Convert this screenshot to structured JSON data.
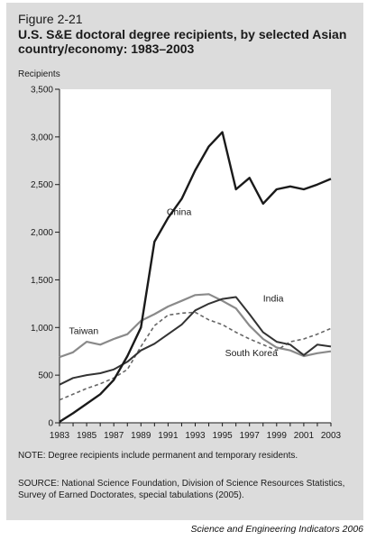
{
  "figure": {
    "label": "Figure 2-21",
    "title": "U.S. S&E doctoral degree recipients, by selected Asian country/economy: 1983–2003",
    "note": "NOTE: Degree recipients include permanent and temporary residents.",
    "source": "SOURCE: National Science Foundation, Division of Science Resources Statistics, Survey of Earned Doctorates, special tabulations (2005).",
    "credit": "Science and Engineering Indicators 2006"
  },
  "colors": {
    "panel": "#dcdcdc",
    "china": "#1a1a1a",
    "india": "#333333",
    "taiwan": "#8a8a8a",
    "south_korea": "#666666"
  },
  "chart_data": {
    "type": "line",
    "title": "",
    "ylabel": "Recipients",
    "xlabel": "",
    "x": [
      1983,
      1984,
      1985,
      1986,
      1987,
      1988,
      1989,
      1990,
      1991,
      1992,
      1993,
      1994,
      1995,
      1996,
      1997,
      1998,
      1999,
      2000,
      2001,
      2002,
      2003
    ],
    "xticks": [
      "1983",
      "1985",
      "1987",
      "1989",
      "1991",
      "1993",
      "1995",
      "1997",
      "1999",
      "2001",
      "2003"
    ],
    "yticks": [
      "0",
      "500",
      "1,000",
      "1,500",
      "2,000",
      "2,500",
      "3,000",
      "3,500"
    ],
    "ylim": [
      0,
      3500
    ],
    "grid": false,
    "series": [
      {
        "name": "China",
        "style": "solid",
        "width": 2.4,
        "values": [
          10,
          100,
          200,
          300,
          450,
          700,
          1000,
          1900,
          2150,
          2350,
          2650,
          2900,
          3050,
          2450,
          2570,
          2300,
          2450,
          2480,
          2450,
          2500,
          2560
        ]
      },
      {
        "name": "India",
        "style": "solid",
        "width": 2.0,
        "values": [
          400,
          470,
          500,
          520,
          560,
          640,
          760,
          830,
          930,
          1030,
          1180,
          1250,
          1300,
          1320,
          1140,
          950,
          850,
          820,
          710,
          820,
          800
        ]
      },
      {
        "name": "Taiwan",
        "style": "solid",
        "width": 2.2,
        "values": [
          690,
          740,
          850,
          820,
          880,
          930,
          1070,
          1140,
          1220,
          1280,
          1340,
          1350,
          1280,
          1200,
          1020,
          880,
          790,
          760,
          700,
          730,
          750
        ]
      },
      {
        "name": "South Korea",
        "style": "dashed",
        "width": 1.6,
        "values": [
          240,
          300,
          360,
          410,
          470,
          560,
          800,
          1020,
          1130,
          1150,
          1160,
          1080,
          1030,
          950,
          880,
          820,
          760,
          850,
          880,
          930,
          990
        ]
      }
    ],
    "annotations": [
      "China",
      "India",
      "Taiwan",
      "South Korea"
    ]
  }
}
